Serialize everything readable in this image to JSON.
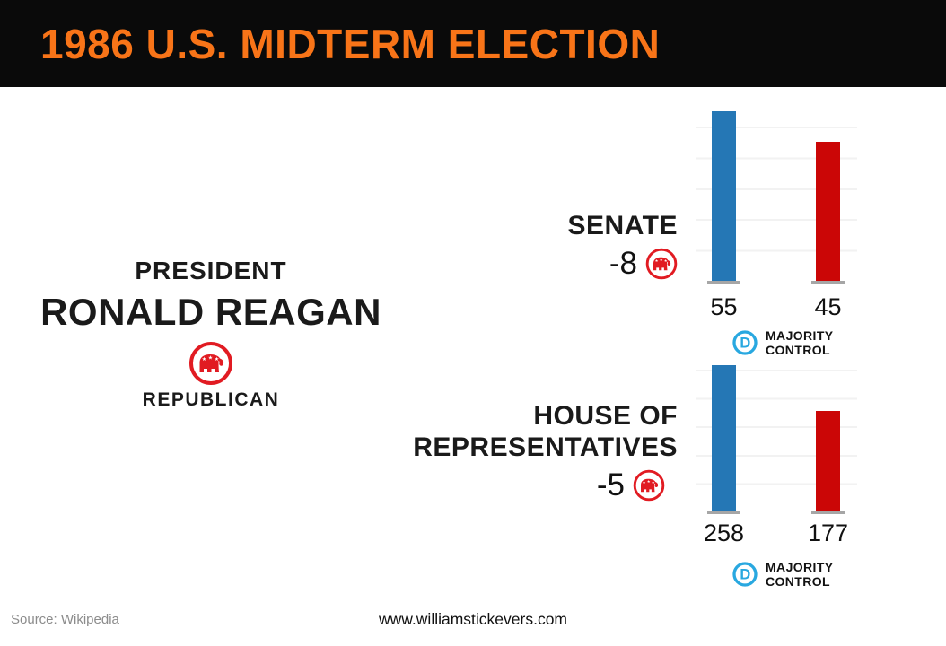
{
  "header": {
    "title": "1986 U.S. MIDTERM ELECTION"
  },
  "president": {
    "label": "PRESIDENT",
    "name": "RONALD REAGAN",
    "party": "REPUBLICAN"
  },
  "chart_data": [
    {
      "type": "bar",
      "chamber": "SENATE",
      "title_lines": [
        "SENATE"
      ],
      "seat_change": "-8",
      "seat_change_party": "Republican",
      "categories": [
        "Democratic",
        "Republican"
      ],
      "values": [
        55,
        45
      ],
      "bar_colors": [
        "#2577B5",
        "#CB0606"
      ],
      "ylim": [
        0,
        55
      ],
      "grid": "faint-horizontal",
      "majority_label_lines": [
        "MAJORITY",
        "CONTROL"
      ],
      "majority_party": "Democratic"
    },
    {
      "type": "bar",
      "chamber": "HOUSE OF REPRESENTATIVES",
      "title_lines": [
        "HOUSE OF",
        "REPRESENTATIVES"
      ],
      "seat_change": "-5",
      "seat_change_party": "Republican",
      "categories": [
        "Democratic",
        "Republican"
      ],
      "values": [
        258,
        177
      ],
      "bar_colors": [
        "#2577B5",
        "#CB0606"
      ],
      "ylim": [
        0,
        258
      ],
      "grid": "faint-horizontal",
      "majority_label_lines": [
        "MAJORITY",
        "CONTROL"
      ],
      "majority_party": "Democratic"
    }
  ],
  "footer": {
    "source": "Source: Wikipedia",
    "website": "www.williamstickevers.com"
  },
  "icons": {
    "republican_party": "elephant-in-red-circle",
    "democratic_party": "letter-D-in-blue-circle"
  },
  "colors": {
    "header_background": "#0A0A0A",
    "accent_orange": "#F87418",
    "democrat_bar_blue": "#2577B5",
    "republican_bar_red": "#CB0606",
    "gop_logo_red": "#E11B22",
    "democrat_logo_blue": "#29A8E0",
    "baseline_gray": "#A6A6A6"
  }
}
